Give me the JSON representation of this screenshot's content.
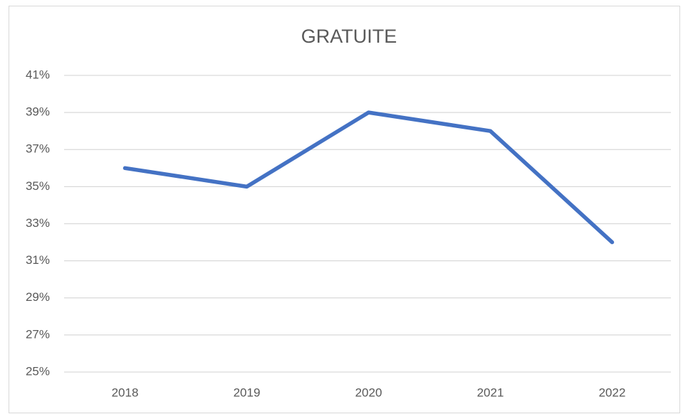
{
  "chart_data": {
    "type": "line",
    "title": "GRATUITE",
    "categories": [
      "2018",
      "2019",
      "2020",
      "2021",
      "2022"
    ],
    "series": [
      {
        "name": "GRATUITE",
        "color": "#4472c4",
        "values": [
          36,
          35,
          39,
          38,
          32
        ]
      }
    ],
    "ylim": [
      25,
      41
    ],
    "yticks": [
      {
        "value": 25,
        "label": "25%"
      },
      {
        "value": 27,
        "label": "27%"
      },
      {
        "value": 29,
        "label": "29%"
      },
      {
        "value": 31,
        "label": "31%"
      },
      {
        "value": 33,
        "label": "33%"
      },
      {
        "value": 35,
        "label": "35%"
      },
      {
        "value": 37,
        "label": "37%"
      },
      {
        "value": 39,
        "label": "39%"
      },
      {
        "value": 41,
        "label": "41%"
      }
    ],
    "grid": true
  }
}
